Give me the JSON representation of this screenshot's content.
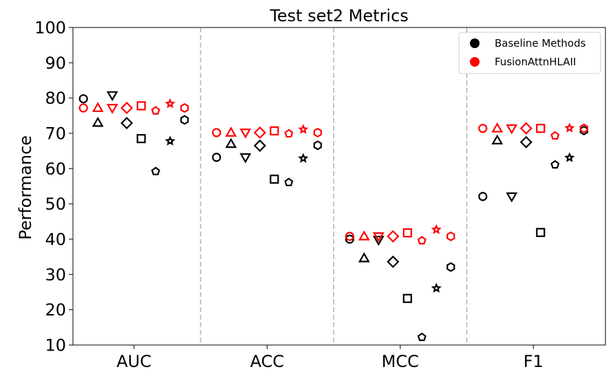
{
  "chart_data": {
    "type": "scatter",
    "title": "Test set2 Metrics",
    "xlabel": "",
    "ylabel": "Performance",
    "ylim": [
      10,
      100
    ],
    "yticks": [
      10,
      20,
      30,
      40,
      50,
      60,
      70,
      80,
      90,
      100
    ],
    "categories": [
      "AUC",
      "ACC",
      "MCC",
      "F1"
    ],
    "grid": false,
    "category_separators": "dashed gray vertical lines between categories",
    "legend": {
      "placement": "top-right",
      "entries": [
        {
          "label": "Baseline Methods",
          "color": "#000000"
        },
        {
          "label": "FusionAttnHLAII",
          "color": "#ff0000"
        }
      ]
    },
    "markers": [
      "circle",
      "triangle-up",
      "triangle-down",
      "diamond",
      "square",
      "pentagon",
      "star",
      "hexagon"
    ],
    "series": [
      {
        "color": "#000000",
        "values": [
          [
            79.8,
            73.0,
            80.8,
            72.9,
            68.5,
            59.2,
            67.8,
            73.8
          ],
          [
            63.2,
            67.0,
            63.2,
            66.5,
            57.0,
            56.1,
            62.9,
            66.6
          ],
          [
            40.0,
            34.6,
            39.8,
            33.6,
            23.2,
            12.2,
            26.1,
            32.1
          ],
          [
            52.1,
            68.0,
            52.1,
            67.5,
            41.9,
            61.1,
            63.1,
            70.8
          ]
        ]
      },
      {
        "color": "#ff0000",
        "values": [
          [
            77.2,
            77.2,
            77.2,
            77.2,
            77.8,
            76.4,
            78.4,
            77.2
          ],
          [
            70.2,
            70.2,
            70.2,
            70.2,
            70.7,
            69.9,
            71.1,
            70.2
          ],
          [
            40.8,
            40.8,
            40.8,
            40.8,
            41.8,
            39.6,
            42.7,
            40.8
          ],
          [
            71.4,
            71.4,
            71.4,
            71.4,
            71.4,
            69.3,
            71.5,
            71.4
          ]
        ]
      }
    ]
  }
}
